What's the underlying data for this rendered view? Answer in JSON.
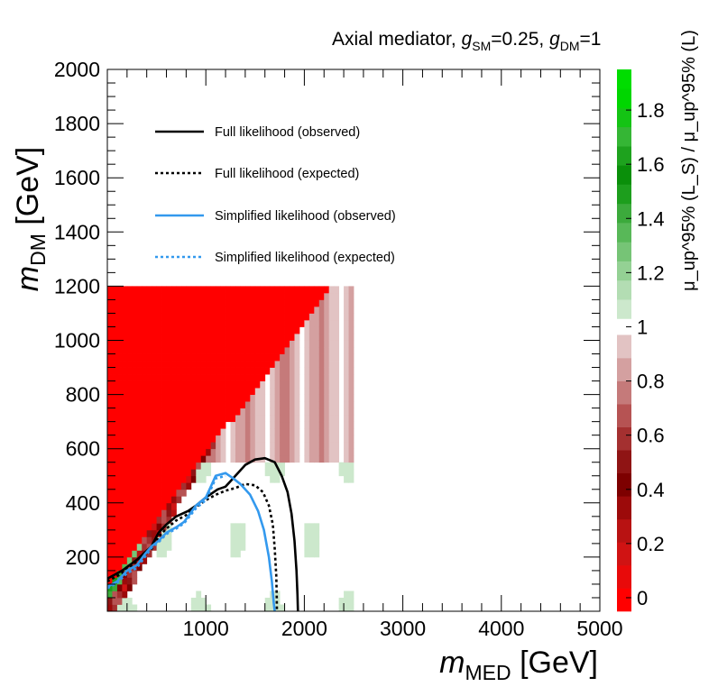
{
  "chart_data": {
    "type": "heatmap",
    "title": {
      "prefix": "Axial mediator, ",
      "g_sm_sym": "g",
      "g_sm_sub": "SM",
      "g_sm_val": "=0.25, ",
      "g_dm_sym": "g",
      "g_dm_sub": "DM",
      "g_dm_val": "=1"
    },
    "xlabel": {
      "sym": "m",
      "sub": "MED",
      "unit": " [GeV]"
    },
    "ylabel": {
      "sym": "m",
      "sub": "DM",
      "unit": " [GeV]"
    },
    "zlabel": "μ_up^95% (L_S) / μ_up^95% (L)",
    "xlim": [
      0,
      5000
    ],
    "ylim": [
      0,
      2000
    ],
    "zlim": [
      -0.05,
      1.95
    ],
    "xticks": [
      "1000",
      "2000",
      "3000",
      "4000",
      "5000"
    ],
    "yticks": [
      "200",
      "400",
      "600",
      "800",
      "1000",
      "1200",
      "1400",
      "1600",
      "1800",
      "2000"
    ],
    "zticks": [
      "0",
      "0.2",
      "0.4",
      "0.6",
      "0.8",
      "1",
      "1.2",
      "1.4",
      "1.6",
      "1.8"
    ],
    "grid": false,
    "legend_position": "top-left",
    "colors": {
      "red_max": "#ff0000",
      "green_max": "#00dd00",
      "white": "#ffffff",
      "full_likelihood": "#000000",
      "simplified_likelihood": "#3399ee"
    },
    "palette_low": [
      "#ff0000",
      "#e80a0a",
      "#d01313",
      "#b81212",
      "#9c0a0a",
      "#7d0000",
      "#8f1414",
      "#a43030",
      "#b65353",
      "#c57a7a",
      "#d4a0a0",
      "#e2c3c3"
    ],
    "palette_high": [
      "#cce8cc",
      "#b3ddb3",
      "#94d194",
      "#76c476",
      "#58b858",
      "#3caa3c",
      "#1d9e1d",
      "#0a8f0a",
      "#1ea21e",
      "#35b635",
      "#14c414",
      "#00d600",
      "#00dd00"
    ],
    "region": {
      "xmax": 2500,
      "ymax": 1200
    },
    "series": [
      {
        "name": "Full likelihood (observed)",
        "style": "solid",
        "color": "#000000",
        "points": [
          [
            0,
            120
          ],
          [
            150,
            150
          ],
          [
            300,
            190
          ],
          [
            450,
            240
          ],
          [
            520,
            290
          ],
          [
            600,
            320
          ],
          [
            700,
            350
          ],
          [
            820,
            370
          ],
          [
            900,
            390
          ],
          [
            1000,
            420
          ],
          [
            1120,
            450
          ],
          [
            1200,
            460
          ],
          [
            1300,
            500
          ],
          [
            1400,
            540
          ],
          [
            1500,
            560
          ],
          [
            1600,
            565
          ],
          [
            1700,
            550
          ],
          [
            1770,
            500
          ],
          [
            1830,
            440
          ],
          [
            1870,
            360
          ],
          [
            1900,
            260
          ],
          [
            1920,
            150
          ],
          [
            1930,
            60
          ],
          [
            1935,
            0
          ]
        ]
      },
      {
        "name": "Full likelihood (expected)",
        "style": "dotted",
        "color": "#000000",
        "points": [
          [
            0,
            110
          ],
          [
            150,
            140
          ],
          [
            300,
            185
          ],
          [
            450,
            230
          ],
          [
            520,
            275
          ],
          [
            600,
            305
          ],
          [
            700,
            335
          ],
          [
            800,
            355
          ],
          [
            900,
            385
          ],
          [
            1000,
            410
          ],
          [
            1100,
            430
          ],
          [
            1200,
            445
          ],
          [
            1300,
            455
          ],
          [
            1400,
            470
          ],
          [
            1500,
            465
          ],
          [
            1580,
            440
          ],
          [
            1640,
            390
          ],
          [
            1680,
            320
          ],
          [
            1700,
            230
          ],
          [
            1715,
            130
          ],
          [
            1720,
            50
          ],
          [
            1722,
            0
          ]
        ]
      },
      {
        "name": "Simplified likelihood (observed)",
        "style": "solid",
        "color": "#3399ee",
        "points": [
          [
            0,
            90
          ],
          [
            100,
            110
          ],
          [
            200,
            150
          ],
          [
            300,
            170
          ],
          [
            380,
            210
          ],
          [
            450,
            240
          ],
          [
            520,
            260
          ],
          [
            600,
            290
          ],
          [
            700,
            310
          ],
          [
            780,
            330
          ],
          [
            900,
            390
          ],
          [
            1000,
            420
          ],
          [
            1050,
            460
          ],
          [
            1100,
            500
          ],
          [
            1200,
            510
          ],
          [
            1280,
            490
          ],
          [
            1350,
            470
          ],
          [
            1450,
            430
          ],
          [
            1530,
            370
          ],
          [
            1590,
            300
          ],
          [
            1640,
            200
          ],
          [
            1670,
            110
          ],
          [
            1690,
            30
          ],
          [
            1700,
            0
          ]
        ]
      },
      {
        "name": "Simplified likelihood (expected)",
        "style": "dotted",
        "color": "#3399ee",
        "points": [
          [
            0,
            85
          ],
          [
            100,
            105
          ],
          [
            200,
            140
          ],
          [
            300,
            160
          ],
          [
            380,
            200
          ],
          [
            450,
            235
          ],
          [
            520,
            255
          ],
          [
            600,
            285
          ],
          [
            700,
            305
          ],
          [
            780,
            325
          ],
          [
            900,
            380
          ],
          [
            1000,
            410
          ],
          [
            1050,
            450
          ],
          [
            1100,
            490
          ],
          [
            1200,
            500
          ]
        ]
      }
    ],
    "legend": [
      "Full likelihood (observed)",
      "Full likelihood (expected)",
      "Simplified likelihood (observed)",
      "Simplified likelihood (expected)"
    ]
  }
}
